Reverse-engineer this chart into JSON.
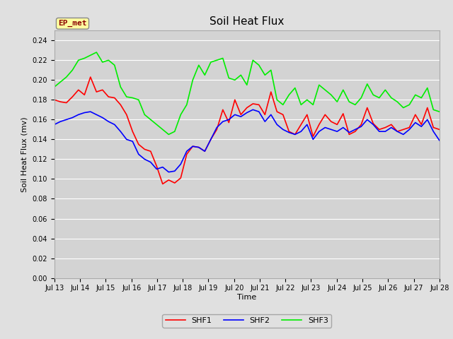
{
  "title": "Soil Heat Flux",
  "xlabel": "Time",
  "ylabel": "Soil Heat Flux (mv)",
  "ylim": [
    0.0,
    0.25
  ],
  "yticks": [
    0.0,
    0.02,
    0.04,
    0.06,
    0.08,
    0.1,
    0.12,
    0.14,
    0.16,
    0.18,
    0.2,
    0.22,
    0.24
  ],
  "xtick_labels": [
    "Jul 13",
    "Jul 14",
    "Jul 15",
    "Jul 16",
    "Jul 17",
    "Jul 18",
    "Jul 19",
    "Jul 20",
    "Jul 21",
    "Jul 22",
    "Jul 23",
    "Jul 24",
    "Jul 25",
    "Jul 26",
    "Jul 27",
    "Jul 28"
  ],
  "annotation_text": "EP_met",
  "annotation_color": "#8B0000",
  "annotation_bg": "#FFFFA0",
  "bg_color": "#E0E0E0",
  "plot_bg_color": "#D3D3D3",
  "grid_color": "#FFFFFF",
  "shf1_color": "#FF0000",
  "shf2_color": "#0000FF",
  "shf3_color": "#00EE00",
  "line_width": 1.2,
  "title_fontsize": 11,
  "tick_fontsize": 7,
  "ylabel_fontsize": 8,
  "xlabel_fontsize": 8,
  "shf1": [
    0.18,
    0.178,
    0.177,
    0.183,
    0.19,
    0.185,
    0.203,
    0.188,
    0.19,
    0.183,
    0.182,
    0.175,
    0.165,
    0.148,
    0.135,
    0.13,
    0.128,
    0.113,
    0.095,
    0.099,
    0.096,
    0.101,
    0.125,
    0.133,
    0.132,
    0.128,
    0.14,
    0.15,
    0.17,
    0.157,
    0.18,
    0.165,
    0.172,
    0.176,
    0.175,
    0.165,
    0.188,
    0.168,
    0.165,
    0.148,
    0.145,
    0.155,
    0.165,
    0.143,
    0.155,
    0.165,
    0.158,
    0.155,
    0.166,
    0.145,
    0.148,
    0.155,
    0.172,
    0.156,
    0.15,
    0.152,
    0.155,
    0.148,
    0.15,
    0.152,
    0.165,
    0.155,
    0.172,
    0.152,
    0.15
  ],
  "shf2": [
    0.155,
    0.158,
    0.16,
    0.162,
    0.165,
    0.167,
    0.168,
    0.165,
    0.162,
    0.158,
    0.155,
    0.148,
    0.14,
    0.138,
    0.125,
    0.12,
    0.117,
    0.11,
    0.112,
    0.107,
    0.108,
    0.115,
    0.128,
    0.133,
    0.132,
    0.128,
    0.14,
    0.152,
    0.158,
    0.16,
    0.165,
    0.163,
    0.167,
    0.17,
    0.168,
    0.158,
    0.165,
    0.155,
    0.15,
    0.147,
    0.145,
    0.148,
    0.155,
    0.14,
    0.148,
    0.152,
    0.15,
    0.148,
    0.152,
    0.147,
    0.15,
    0.153,
    0.16,
    0.155,
    0.148,
    0.148,
    0.152,
    0.148,
    0.145,
    0.15,
    0.157,
    0.153,
    0.16,
    0.148,
    0.139
  ],
  "shf3": [
    0.193,
    0.198,
    0.203,
    0.21,
    0.22,
    0.222,
    0.225,
    0.228,
    0.218,
    0.22,
    0.215,
    0.193,
    0.183,
    0.182,
    0.18,
    0.165,
    0.16,
    0.155,
    0.15,
    0.145,
    0.148,
    0.165,
    0.175,
    0.2,
    0.215,
    0.205,
    0.218,
    0.22,
    0.222,
    0.202,
    0.2,
    0.205,
    0.195,
    0.22,
    0.215,
    0.205,
    0.21,
    0.18,
    0.175,
    0.185,
    0.192,
    0.175,
    0.18,
    0.175,
    0.195,
    0.19,
    0.185,
    0.178,
    0.19,
    0.178,
    0.175,
    0.182,
    0.196,
    0.185,
    0.182,
    0.19,
    0.182,
    0.178,
    0.172,
    0.175,
    0.185,
    0.182,
    0.192,
    0.17,
    0.168
  ]
}
